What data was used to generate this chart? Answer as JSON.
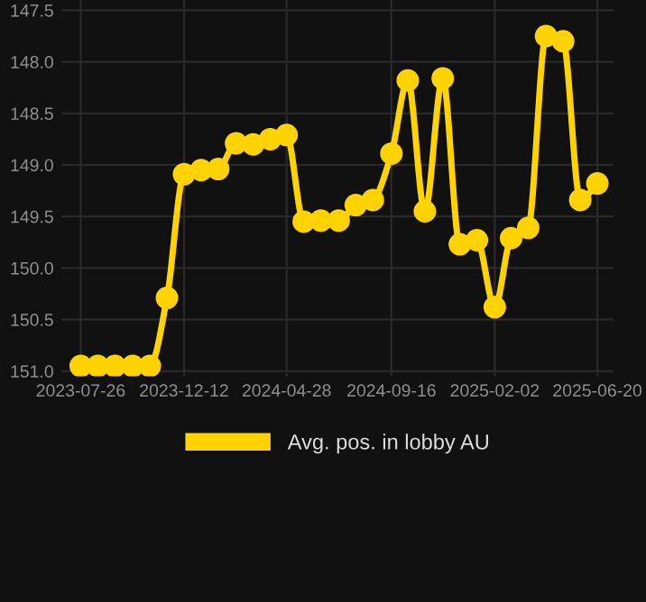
{
  "chart_data": {
    "type": "line",
    "x": [
      "2023-07-26",
      "2023-08-18",
      "2023-09-10",
      "2023-10-04",
      "2023-10-27",
      "2023-11-19",
      "2023-12-12",
      "2024-01-04",
      "2024-01-27",
      "2024-02-20",
      "2024-03-14",
      "2024-04-06",
      "2024-04-28",
      "2024-05-21",
      "2024-06-13",
      "2024-07-07",
      "2024-07-30",
      "2024-08-22",
      "2024-09-16",
      "2024-10-08",
      "2024-10-31",
      "2024-11-24",
      "2024-12-17",
      "2025-01-09",
      "2025-02-02",
      "2025-02-24",
      "2025-03-19",
      "2025-04-12",
      "2025-05-05",
      "2025-05-28",
      "2025-06-20"
    ],
    "series": [
      {
        "name": "Avg. pos. in lobby AU",
        "color": "#ffd300",
        "values": [
          150.95,
          150.95,
          150.95,
          150.95,
          150.95,
          150.29,
          149.09,
          149.05,
          149.04,
          148.79,
          148.8,
          148.75,
          148.71,
          149.55,
          149.54,
          149.54,
          149.39,
          149.34,
          148.89,
          148.18,
          149.45,
          148.16,
          149.77,
          149.73,
          150.38,
          149.71,
          149.61,
          147.75,
          147.8,
          149.34,
          149.18
        ]
      }
    ],
    "ylim": [
      151.05,
      147.4
    ],
    "yticks": [
      {
        "value": 147.5,
        "label": "147.5"
      },
      {
        "value": 148,
        "label": "148.0"
      },
      {
        "value": 148.5,
        "label": "148.5"
      },
      {
        "value": 149,
        "label": "149.0"
      },
      {
        "value": 149.5,
        "label": "149.5"
      },
      {
        "value": 150,
        "label": "150.0"
      },
      {
        "value": 150.5,
        "label": "150.5"
      },
      {
        "value": 151,
        "label": "151.0"
      }
    ],
    "xlim": [
      "2023-06-30",
      "2025-07-12"
    ],
    "xticks": [
      "2023-07-26",
      "2023-12-12",
      "2024-04-28",
      "2024-09-16",
      "2025-02-02",
      "2025-06-20"
    ],
    "grid": true,
    "legend": "bottom",
    "marker": "circle",
    "line_style": "solid"
  }
}
